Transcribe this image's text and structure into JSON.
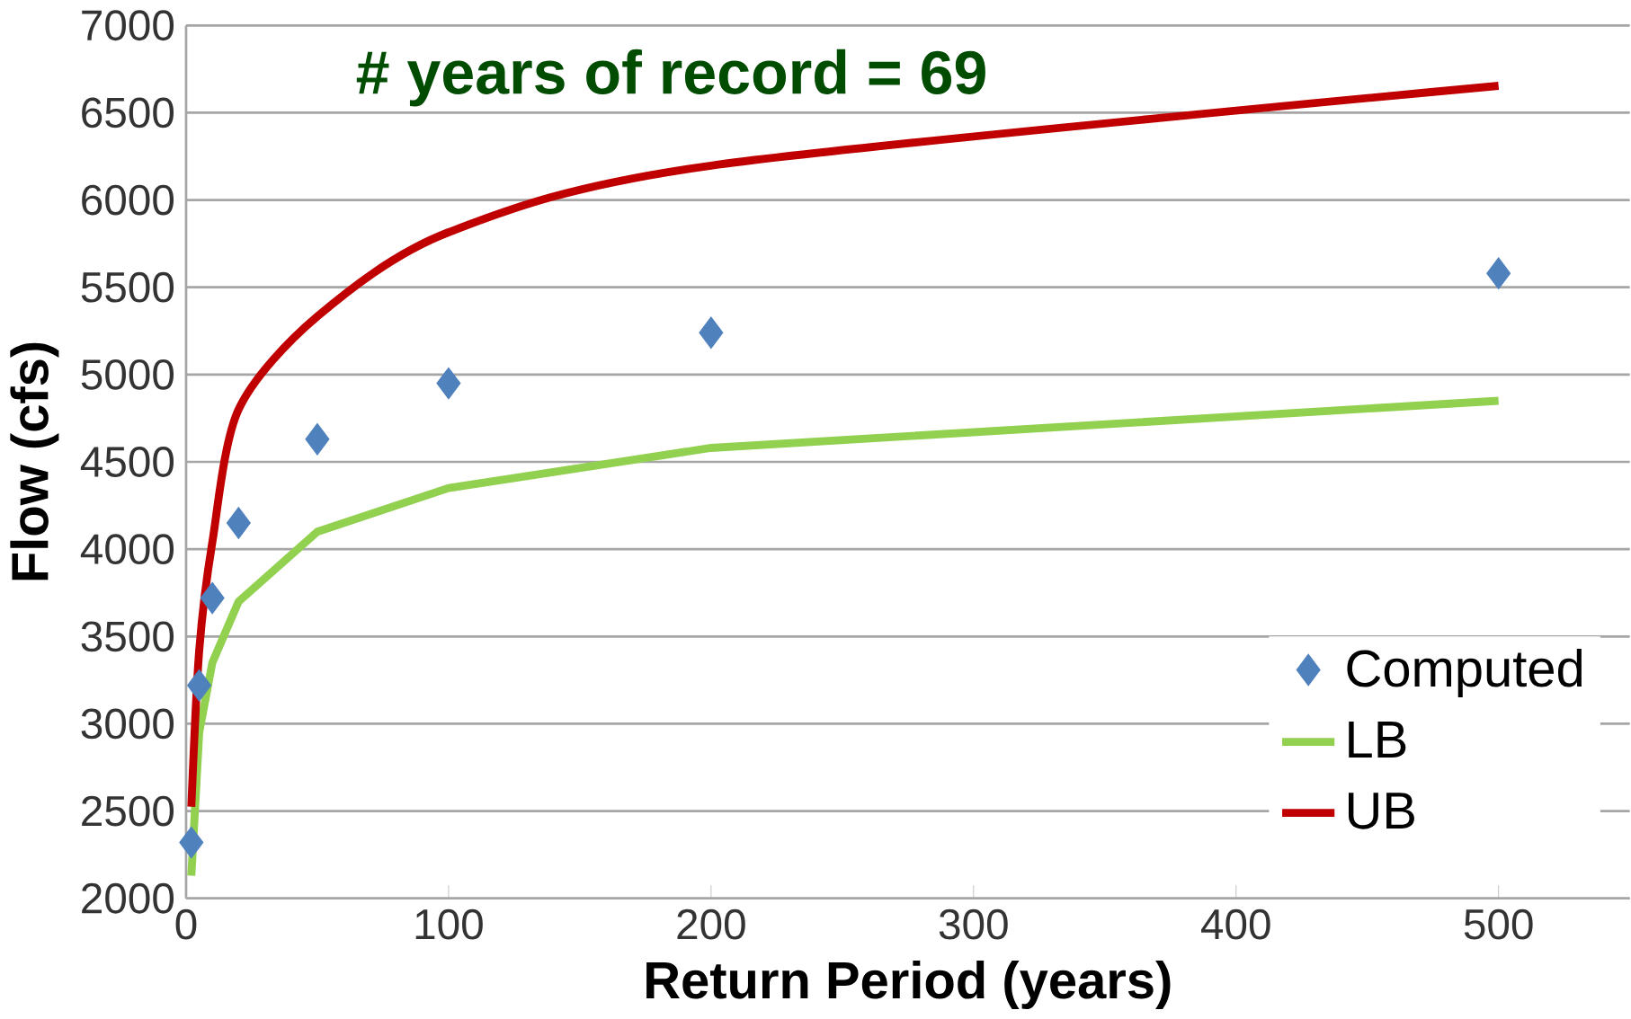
{
  "chart_data": {
    "type": "line",
    "xlabel": "Return Period (years)",
    "ylabel": "Flow (cfs)",
    "annotations": [
      "# years of record = 69"
    ],
    "xlim": [
      0,
      550
    ],
    "xticks": [
      0,
      100,
      200,
      300,
      400,
      500
    ],
    "ylim": [
      2000,
      7000
    ],
    "yticks": [
      2000,
      2500,
      3000,
      3500,
      4000,
      4500,
      5000,
      5500,
      6000,
      6500,
      7000
    ],
    "grid": "y",
    "legend": "bottom right",
    "series": [
      {
        "name": "Computed",
        "type": "scatter",
        "marker": "diamond",
        "color": "#4f81bd",
        "x": [
          2,
          5,
          10,
          20,
          50,
          100,
          200,
          500
        ],
        "values": [
          2320,
          3220,
          3720,
          4150,
          4630,
          4950,
          5240,
          5580
        ]
      },
      {
        "name": "LB",
        "color": "#92d050",
        "x": [
          2,
          5,
          10,
          20,
          50,
          100,
          200,
          500
        ],
        "values": [
          2130,
          2950,
          3350,
          3700,
          4100,
          4350,
          4580,
          4850
        ]
      },
      {
        "name": "UB",
        "color": "#c00000",
        "x": [
          2,
          5,
          10,
          20,
          50,
          100,
          200,
          500
        ],
        "values": [
          2525,
          3420,
          4040,
          4800,
          5333,
          5815,
          6197,
          6654
        ]
      }
    ]
  }
}
